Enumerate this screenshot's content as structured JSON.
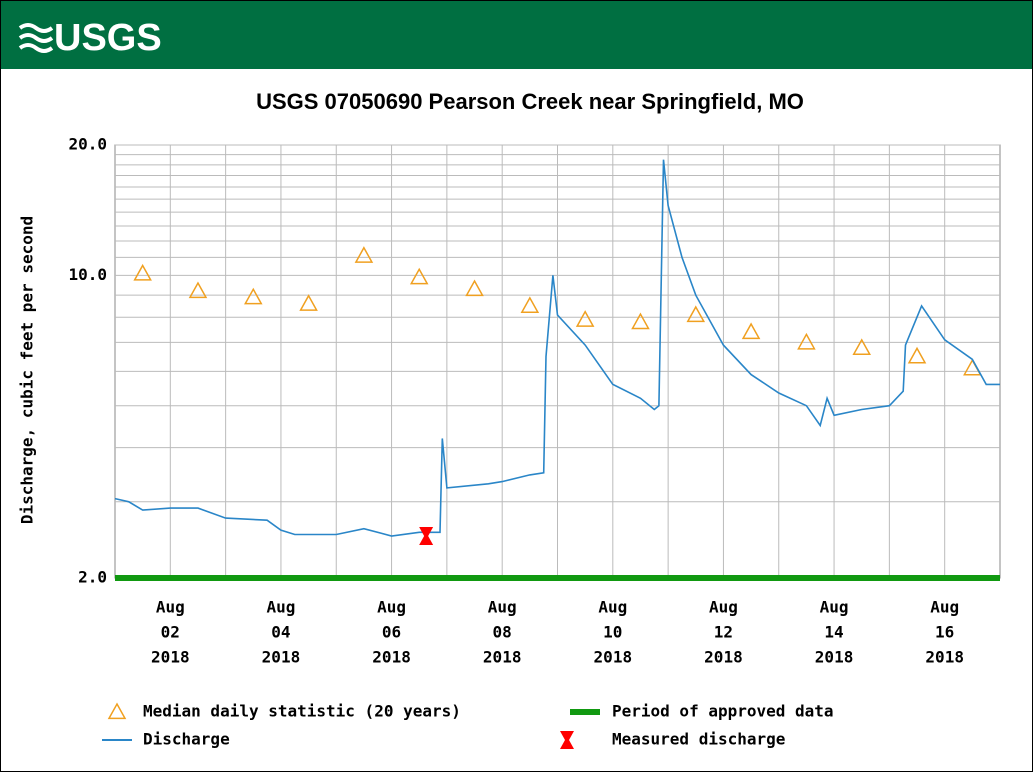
{
  "chart_data": {
    "type": "line",
    "logo": "USGS",
    "title": "USGS 07050690 Pearson Creek near Springfield, MO",
    "y_label": "Discharge, cubic feet per second",
    "log_y": true,
    "grid": true,
    "ylim": [
      2,
      20
    ],
    "yticks": [
      {
        "value": 2,
        "label": "2.0"
      },
      {
        "value": 10,
        "label": "10.0"
      },
      {
        "value": 20,
        "label": "20.0"
      }
    ],
    "minor_yticks": [
      3,
      4,
      5,
      6,
      7,
      8,
      9,
      11,
      12,
      13,
      14,
      15,
      16,
      17,
      18,
      19
    ],
    "xlim": [
      "2018-08-01",
      "2018-08-17"
    ],
    "xticks": [
      {
        "value": "2018-08-02",
        "label": [
          "Aug",
          "02",
          "2018"
        ]
      },
      {
        "value": "2018-08-04",
        "label": [
          "Aug",
          "04",
          "2018"
        ]
      },
      {
        "value": "2018-08-06",
        "label": [
          "Aug",
          "06",
          "2018"
        ]
      },
      {
        "value": "2018-08-08",
        "label": [
          "Aug",
          "08",
          "2018"
        ]
      },
      {
        "value": "2018-08-10",
        "label": [
          "Aug",
          "10",
          "2018"
        ]
      },
      {
        "value": "2018-08-12",
        "label": [
          "Aug",
          "12",
          "2018"
        ]
      },
      {
        "value": "2018-08-14",
        "label": [
          "Aug",
          "14",
          "2018"
        ]
      },
      {
        "value": "2018-08-16",
        "label": [
          "Aug",
          "16",
          "2018"
        ]
      }
    ],
    "minor_xticks": [
      "2018-08-03",
      "2018-08-05",
      "2018-08-07",
      "2018-08-09",
      "2018-08-11",
      "2018-08-13",
      "2018-08-15"
    ],
    "series": [
      {
        "name": "Median daily statistic (20 years)",
        "color": "#f0a020",
        "marker": "triangle",
        "x": [
          "2018-08-01 12:00",
          "2018-08-02 12:00",
          "2018-08-03 12:00",
          "2018-08-04 12:00",
          "2018-08-05 12:00",
          "2018-08-06 12:00",
          "2018-08-07 12:00",
          "2018-08-08 12:00",
          "2018-08-09 12:00",
          "2018-08-10 12:00",
          "2018-08-11 12:00",
          "2018-08-12 12:00",
          "2018-08-13 12:00",
          "2018-08-14 12:00",
          "2018-08-15 12:00",
          "2018-08-16 12:00"
        ],
        "values": [
          10.1,
          9.2,
          8.9,
          8.6,
          11.1,
          9.9,
          9.3,
          8.5,
          7.9,
          7.8,
          8.1,
          7.4,
          7.0,
          6.8,
          6.5,
          6.1
        ]
      },
      {
        "name": "Discharge",
        "color": "#2a86c8",
        "marker": "line",
        "x": [
          "2018-08-01 00:00",
          "2018-08-01 06:00",
          "2018-08-01 12:00",
          "2018-08-02 00:00",
          "2018-08-02 12:00",
          "2018-08-03 00:00",
          "2018-08-03 18:00",
          "2018-08-04 00:00",
          "2018-08-04 06:00",
          "2018-08-05 00:00",
          "2018-08-05 12:00",
          "2018-08-06 00:00",
          "2018-08-06 12:00",
          "2018-08-06 21:00",
          "2018-08-06 22:00",
          "2018-08-07 00:00",
          "2018-08-07 18:00",
          "2018-08-08 00:00",
          "2018-08-08 12:00",
          "2018-08-08 18:00",
          "2018-08-08 19:00",
          "2018-08-08 22:00",
          "2018-08-09 00:00",
          "2018-08-09 12:00",
          "2018-08-10 00:00",
          "2018-08-10 12:00",
          "2018-08-10 18:00",
          "2018-08-10 20:00",
          "2018-08-10 22:00",
          "2018-08-11 00:00",
          "2018-08-11 06:00",
          "2018-08-11 12:00",
          "2018-08-12 00:00",
          "2018-08-12 12:00",
          "2018-08-13 00:00",
          "2018-08-13 12:00",
          "2018-08-13 18:00",
          "2018-08-13 21:00",
          "2018-08-14 00:00",
          "2018-08-14 12:00",
          "2018-08-15 00:00",
          "2018-08-15 06:00",
          "2018-08-15 07:00",
          "2018-08-15 14:00",
          "2018-08-16 00:00",
          "2018-08-16 12:00",
          "2018-08-16 18:00",
          "2018-08-17 00:00"
        ],
        "values": [
          3.05,
          3.0,
          2.87,
          2.9,
          2.9,
          2.75,
          2.72,
          2.58,
          2.52,
          2.52,
          2.6,
          2.5,
          2.55,
          2.55,
          4.2,
          3.23,
          3.3,
          3.34,
          3.46,
          3.5,
          6.5,
          10.0,
          8.1,
          6.9,
          5.6,
          5.2,
          4.9,
          5.0,
          18.5,
          14.5,
          11.0,
          9.0,
          6.9,
          5.9,
          5.35,
          5.0,
          4.5,
          5.2,
          4.75,
          4.9,
          5.0,
          5.4,
          6.9,
          8.5,
          7.1,
          6.4,
          5.6,
          5.6
        ]
      },
      {
        "name": "Measured discharge",
        "color": "#ff0000",
        "marker": "bowtie",
        "x": [
          "2018-08-06 15:00"
        ],
        "values": [
          2.5
        ]
      }
    ],
    "periods": [
      {
        "name": "Period of approved data",
        "color": "#119911",
        "start": "2018-08-01",
        "end": "2018-08-17"
      }
    ]
  }
}
